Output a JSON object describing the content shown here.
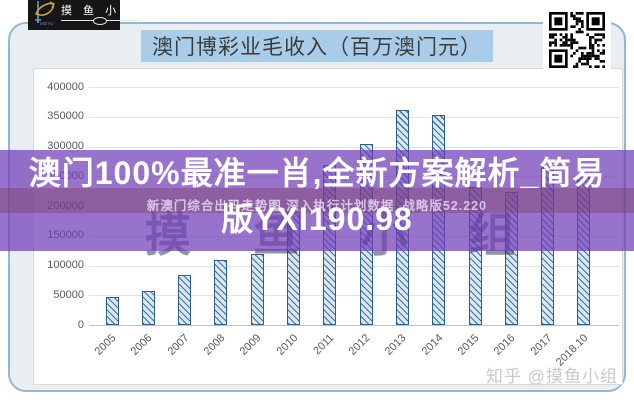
{
  "logo": {
    "brand_chars": "摸 鱼 小 组",
    "brand_sub": "MOYU"
  },
  "header": {
    "title": "澳门博彩业毛收入（百万澳门元）"
  },
  "overlay": {
    "headline_line1": "澳门100%最准一肖,全新方案解析_简易",
    "headline_line2": "版YXI190.98",
    "stripe_text": "新澳门综合出码走势图,深入执行计划数据_战略版52.220"
  },
  "watermarks": {
    "background_text": "摸鱼小组",
    "bottom_right": "知乎 @摸鱼小组"
  },
  "chart_data": {
    "type": "bar",
    "title": "澳门博彩业毛收入（百万澳门元）",
    "categories": [
      "2005",
      "2006",
      "2007",
      "2008",
      "2009",
      "2010",
      "2011",
      "2012",
      "2013",
      "2014",
      "2015",
      "2016",
      "2017",
      "2018.10"
    ],
    "values": [
      47000,
      57500,
      84000,
      110000,
      120000,
      190000,
      269000,
      305000,
      362000,
      353000,
      232000,
      223000,
      266000,
      250000
    ],
    "xlabel": "",
    "ylabel": "",
    "ylim": [
      0,
      400000
    ],
    "ytick_step": 50000,
    "grid": true,
    "legend": false,
    "bar_style": "diagonal-hatch",
    "colors": {
      "bar_fill": "#d9e7f3",
      "bar_hatch": "#41719c",
      "bar_border": "#2e5f8a",
      "grid_line": "#e2e2e2",
      "axis_line": "#c2c2c2",
      "tick_text": "#595959"
    }
  },
  "icons": {
    "fish_logo": "fish-icon",
    "qr_code": "qr-code-icon"
  },
  "accent_colors": {
    "title_highlight": "#a9cde9",
    "overlay_purple": "#9873cb",
    "overlay_stripe": "#8f62a4",
    "frame_border": "#90b7d7",
    "frame_fill": "#e9eef3",
    "logo_bg": "#161616"
  }
}
